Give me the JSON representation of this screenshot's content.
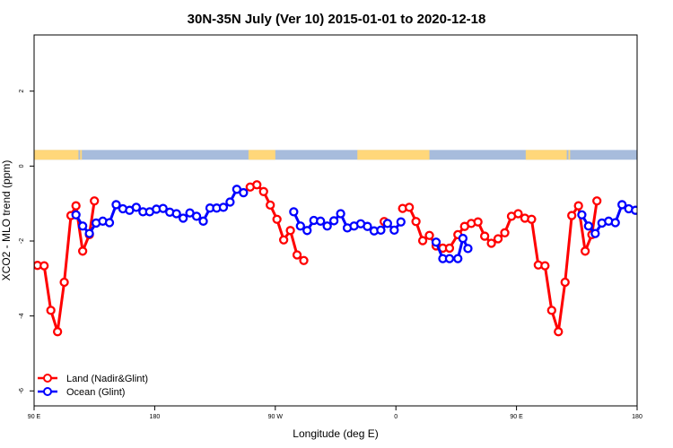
{
  "chart_data": {
    "type": "line",
    "title": "30N-35N July (Ver 10)   2015-01-01 to 2020-12-18",
    "xlabel": "Longitude (deg E)",
    "ylabel": "XCO2 - MLO trend (ppm)",
    "xlim": [
      90,
      450
    ],
    "ylim": [
      -6.4,
      3.5
    ],
    "x_ticks": [
      {
        "value": 90,
        "label": "90 E"
      },
      {
        "value": 162,
        "label": "180"
      },
      {
        "value": 234,
        "label": "90 W"
      },
      {
        "value": 306,
        "label": "0"
      },
      {
        "value": 378,
        "label": "90 E"
      },
      {
        "value": 450,
        "label": "180"
      }
    ],
    "y_ticks": [
      {
        "value": -6,
        "label": "-6"
      },
      {
        "value": -4,
        "label": "-4"
      },
      {
        "value": -2,
        "label": "-2"
      },
      {
        "value": 0,
        "label": "0"
      },
      {
        "value": 2,
        "label": "2"
      }
    ],
    "legend": {
      "position": "bottom-left",
      "entries": [
        {
          "label": "Land (Nadir&Glint)",
          "color": "#ff0000"
        },
        {
          "label": "Ocean (Glint)",
          "color": "#0000ff"
        }
      ]
    },
    "land_mask_band": {
      "y_range": [
        0.17,
        0.43
      ],
      "land_color": "#ffd77a",
      "ocean_color": "#a7bcdc",
      "land_segments": [
        [
          90,
          116.5
        ],
        [
          117.5,
          118.5
        ],
        [
          218,
          234
        ],
        [
          283,
          326
        ],
        [
          383.5,
          408
        ],
        [
          409,
          410
        ]
      ]
    },
    "series": [
      {
        "name": "Land (Nadir&Glint)",
        "color": "#ff0000",
        "segments": [
          [
            [
              92,
              -2.65
            ],
            [
              96,
              -2.66
            ],
            [
              100,
              -3.85
            ],
            [
              104,
              -4.42
            ],
            [
              108,
              -3.1
            ],
            [
              112,
              -1.32
            ],
            [
              115,
              -1.06
            ],
            [
              119,
              -2.27
            ],
            [
              123,
              -1.83
            ],
            [
              126,
              -0.93
            ]
          ],
          [
            [
              219,
              -0.56
            ],
            [
              223,
              -0.5
            ],
            [
              227,
              -0.68
            ],
            [
              231,
              -1.04
            ],
            [
              235,
              -1.42
            ],
            [
              239,
              -1.97
            ],
            [
              243,
              -1.72
            ],
            [
              247,
              -2.37
            ],
            [
              251,
              -2.52
            ]
          ],
          [
            [
              299,
              -1.48
            ]
          ],
          [
            [
              310,
              -1.13
            ],
            [
              314,
              -1.1
            ],
            [
              318,
              -1.48
            ],
            [
              322,
              -1.99
            ],
            [
              326,
              -1.85
            ],
            [
              330,
              -2.13
            ],
            [
              334,
              -2.19
            ],
            [
              338,
              -2.19
            ],
            [
              343,
              -1.83
            ],
            [
              347,
              -1.61
            ],
            [
              351,
              -1.53
            ],
            [
              355,
              -1.49
            ],
            [
              359,
              -1.87
            ],
            [
              363,
              -2.06
            ],
            [
              367,
              -1.94
            ],
            [
              371,
              -1.78
            ],
            [
              375,
              -1.34
            ],
            [
              379,
              -1.27
            ],
            [
              383,
              -1.39
            ],
            [
              387,
              -1.42
            ],
            [
              391,
              -2.64
            ],
            [
              395,
              -2.66
            ],
            [
              399,
              -3.85
            ],
            [
              403,
              -4.42
            ],
            [
              407,
              -3.1
            ],
            [
              411,
              -1.32
            ],
            [
              415,
              -1.06
            ],
            [
              419,
              -2.27
            ],
            [
              423,
              -1.83
            ],
            [
              426,
              -0.93
            ]
          ]
        ]
      },
      {
        "name": "Ocean (Glint)",
        "color": "#0000ff",
        "segments": [
          [
            [
              115,
              -1.3
            ],
            [
              119,
              -1.6
            ],
            [
              123,
              -1.8
            ],
            [
              127,
              -1.52
            ],
            [
              131,
              -1.47
            ],
            [
              135,
              -1.51
            ],
            [
              139,
              -1.03
            ],
            [
              143,
              -1.14
            ],
            [
              147,
              -1.18
            ],
            [
              151,
              -1.1
            ],
            [
              155,
              -1.22
            ],
            [
              159,
              -1.22
            ],
            [
              163,
              -1.15
            ],
            [
              167,
              -1.13
            ],
            [
              171,
              -1.23
            ],
            [
              175,
              -1.27
            ],
            [
              179,
              -1.39
            ],
            [
              183,
              -1.25
            ],
            [
              187,
              -1.34
            ],
            [
              191,
              -1.47
            ],
            [
              195,
              -1.12
            ],
            [
              199,
              -1.12
            ],
            [
              203,
              -1.1
            ],
            [
              207,
              -0.96
            ],
            [
              211,
              -0.62
            ],
            [
              215,
              -0.71
            ]
          ],
          [
            [
              245,
              -1.22
            ],
            [
              249,
              -1.6
            ],
            [
              253,
              -1.72
            ],
            [
              257,
              -1.45
            ],
            [
              261,
              -1.47
            ],
            [
              265,
              -1.6
            ],
            [
              269,
              -1.46
            ],
            [
              273,
              -1.27
            ],
            [
              277,
              -1.65
            ],
            [
              281,
              -1.6
            ],
            [
              285,
              -1.54
            ],
            [
              289,
              -1.61
            ],
            [
              293,
              -1.73
            ],
            [
              297,
              -1.71
            ],
            [
              301,
              -1.53
            ],
            [
              305,
              -1.71
            ],
            [
              309,
              -1.49
            ]
          ],
          [
            [
              330,
              -2.03
            ],
            [
              334,
              -2.47
            ],
            [
              338,
              -2.47
            ],
            [
              343,
              -2.47
            ],
            [
              346,
              -1.93
            ],
            [
              349,
              -2.2
            ]
          ],
          [
            [
              417,
              -1.3
            ],
            [
              421,
              -1.6
            ],
            [
              425,
              -1.8
            ],
            [
              429,
              -1.52
            ],
            [
              433,
              -1.47
            ],
            [
              437,
              -1.51
            ],
            [
              441,
              -1.03
            ],
            [
              445,
              -1.14
            ],
            [
              449,
              -1.18
            ],
            [
              453,
              -1.1
            ],
            [
              457,
              -1.22
            ],
            [
              461,
              -1.22
            ]
          ]
        ]
      }
    ]
  }
}
